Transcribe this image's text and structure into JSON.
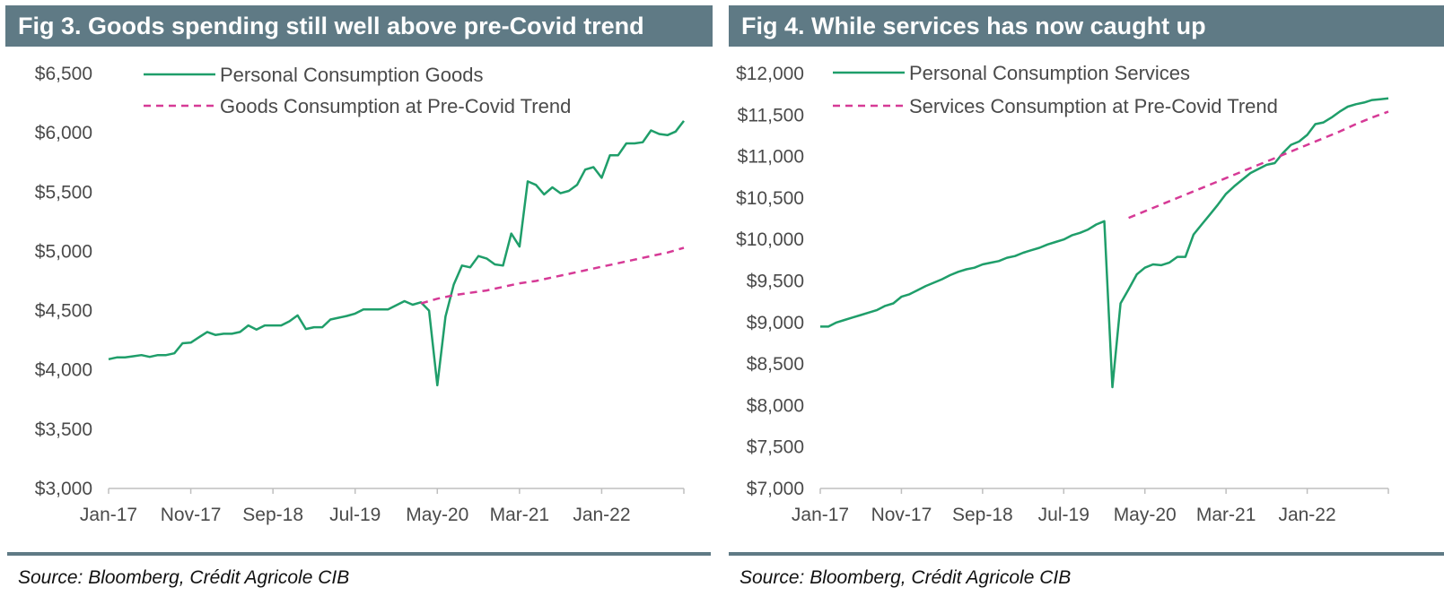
{
  "colors": {
    "header_bg": "#5f7a85",
    "series_solid": "#1f9e6a",
    "series_trend": "#d63a96",
    "axis": "#bfbfbf",
    "text": "#4a4a4a"
  },
  "left": {
    "title": "Fig 3. Goods spending still well above pre-Covid trend",
    "source": "Source: Bloomberg, Crédit Agricole CIB"
  },
  "right": {
    "title": "Fig 4. While services has now caught up",
    "source": "Source: Bloomberg, Crédit Agricole CIB"
  },
  "chart_data": [
    {
      "type": "line",
      "title": "Fig 3. Goods spending still well above pre-Covid trend",
      "xlabel": "",
      "ylabel": "",
      "ylim": [
        3000,
        6500
      ],
      "yticks": [
        3000,
        3500,
        4000,
        4500,
        5000,
        5500,
        6000,
        6500
      ],
      "ytick_labels": [
        "$3,000",
        "$3,500",
        "$4,000",
        "$4,500",
        "$5,000",
        "$5,500",
        "$6,000",
        "$6,500"
      ],
      "xlim": [
        0,
        70
      ],
      "xticks": [
        0,
        10,
        20,
        30,
        40,
        50,
        60,
        70
      ],
      "xtick_labels": [
        "Jan-17",
        "Nov-17",
        "Sep-18",
        "Jul-19",
        "May-20",
        "Mar-21",
        "Jan-22",
        ""
      ],
      "legend_position": "top-left",
      "series": [
        {
          "name": "Personal Consumption Goods",
          "style": "solid",
          "x": [
            0,
            1,
            2,
            3,
            4,
            5,
            6,
            7,
            8,
            9,
            10,
            11,
            12,
            13,
            14,
            15,
            16,
            17,
            18,
            19,
            20,
            21,
            22,
            23,
            24,
            25,
            26,
            27,
            28,
            29,
            30,
            31,
            32,
            33,
            34,
            35,
            36,
            37,
            38,
            39,
            40,
            41,
            42,
            43,
            44,
            45,
            46,
            47,
            48,
            49,
            50,
            51,
            52,
            53,
            54,
            55,
            56,
            57,
            58,
            59,
            60,
            61,
            62,
            63,
            64,
            65,
            66,
            67,
            68,
            69,
            70
          ],
          "values": [
            4090,
            4105,
            4105,
            4115,
            4125,
            4110,
            4125,
            4125,
            4140,
            4225,
            4230,
            4275,
            4320,
            4295,
            4305,
            4305,
            4320,
            4375,
            4340,
            4375,
            4375,
            4375,
            4410,
            4460,
            4345,
            4360,
            4360,
            4425,
            4440,
            4455,
            4475,
            4510,
            4510,
            4510,
            4510,
            4545,
            4580,
            4550,
            4570,
            4500,
            3870,
            4450,
            4720,
            4880,
            4865,
            4960,
            4940,
            4890,
            4880,
            5150,
            5040,
            5590,
            5560,
            5480,
            5540,
            5490,
            5510,
            5560,
            5690,
            5710,
            5620,
            5810,
            5810,
            5910,
            5910,
            5920,
            6020,
            5990,
            5980,
            6010,
            6100
          ]
        },
        {
          "name": "Goods Consumption at Pre-Covid Trend",
          "style": "dashed",
          "x": [
            38,
            40,
            42,
            44,
            46,
            48,
            50,
            52,
            54,
            56,
            58,
            60,
            62,
            64,
            66,
            68,
            70
          ],
          "values": [
            4560,
            4600,
            4630,
            4650,
            4670,
            4700,
            4730,
            4750,
            4780,
            4810,
            4840,
            4870,
            4900,
            4930,
            4960,
            4990,
            5030
          ]
        }
      ]
    },
    {
      "type": "line",
      "title": "Fig 4. While services has now caught up",
      "xlabel": "",
      "ylabel": "",
      "ylim": [
        7000,
        12000
      ],
      "yticks": [
        7000,
        7500,
        8000,
        8500,
        9000,
        9500,
        10000,
        10500,
        11000,
        11500,
        12000
      ],
      "ytick_labels": [
        "$7,000",
        "$7,500",
        "$8,000",
        "$8,500",
        "$9,000",
        "$9,500",
        "$10,000",
        "$10,500",
        "$11,000",
        "$11,500",
        "$12,000"
      ],
      "xlim": [
        0,
        70
      ],
      "xticks": [
        0,
        10,
        20,
        30,
        40,
        50,
        60,
        70
      ],
      "xtick_labels": [
        "Jan-17",
        "Nov-17",
        "Sep-18",
        "Jul-19",
        "May-20",
        "Mar-21",
        "Jan-22",
        ""
      ],
      "legend_position": "top-left",
      "series": [
        {
          "name": "Personal Consumption Services",
          "style": "solid",
          "x": [
            0,
            1,
            2,
            3,
            4,
            5,
            6,
            7,
            8,
            9,
            10,
            11,
            12,
            13,
            14,
            15,
            16,
            17,
            18,
            19,
            20,
            21,
            22,
            23,
            24,
            25,
            26,
            27,
            28,
            29,
            30,
            31,
            32,
            33,
            34,
            35,
            36,
            37,
            38,
            39,
            40,
            41,
            42,
            43,
            44,
            45,
            46,
            47,
            48,
            49,
            50,
            51,
            52,
            53,
            54,
            55,
            56,
            57,
            58,
            59,
            60,
            61,
            62,
            63,
            64,
            65,
            66,
            67,
            68,
            69,
            70
          ],
          "values": [
            8950,
            8950,
            9000,
            9030,
            9060,
            9090,
            9120,
            9150,
            9200,
            9230,
            9310,
            9340,
            9390,
            9440,
            9480,
            9520,
            9570,
            9610,
            9640,
            9660,
            9700,
            9720,
            9740,
            9780,
            9800,
            9840,
            9870,
            9900,
            9940,
            9970,
            10000,
            10050,
            10080,
            10120,
            10180,
            10220,
            8220,
            9230,
            9400,
            9580,
            9660,
            9700,
            9690,
            9720,
            9790,
            9790,
            10060,
            10180,
            10300,
            10420,
            10550,
            10640,
            10720,
            10800,
            10850,
            10900,
            10920,
            11040,
            11140,
            11180,
            11260,
            11390,
            11410,
            11470,
            11540,
            11600,
            11630,
            11650,
            11680,
            11690,
            11700
          ]
        },
        {
          "name": "Services Consumption at Pre-Covid Trend",
          "style": "dashed",
          "x": [
            38,
            40,
            42,
            44,
            46,
            48,
            50,
            52,
            54,
            56,
            58,
            60,
            62,
            64,
            66,
            68,
            70
          ],
          "values": [
            10260,
            10340,
            10420,
            10500,
            10580,
            10660,
            10740,
            10820,
            10900,
            10980,
            11060,
            11140,
            11220,
            11300,
            11390,
            11470,
            11540
          ]
        }
      ]
    }
  ]
}
